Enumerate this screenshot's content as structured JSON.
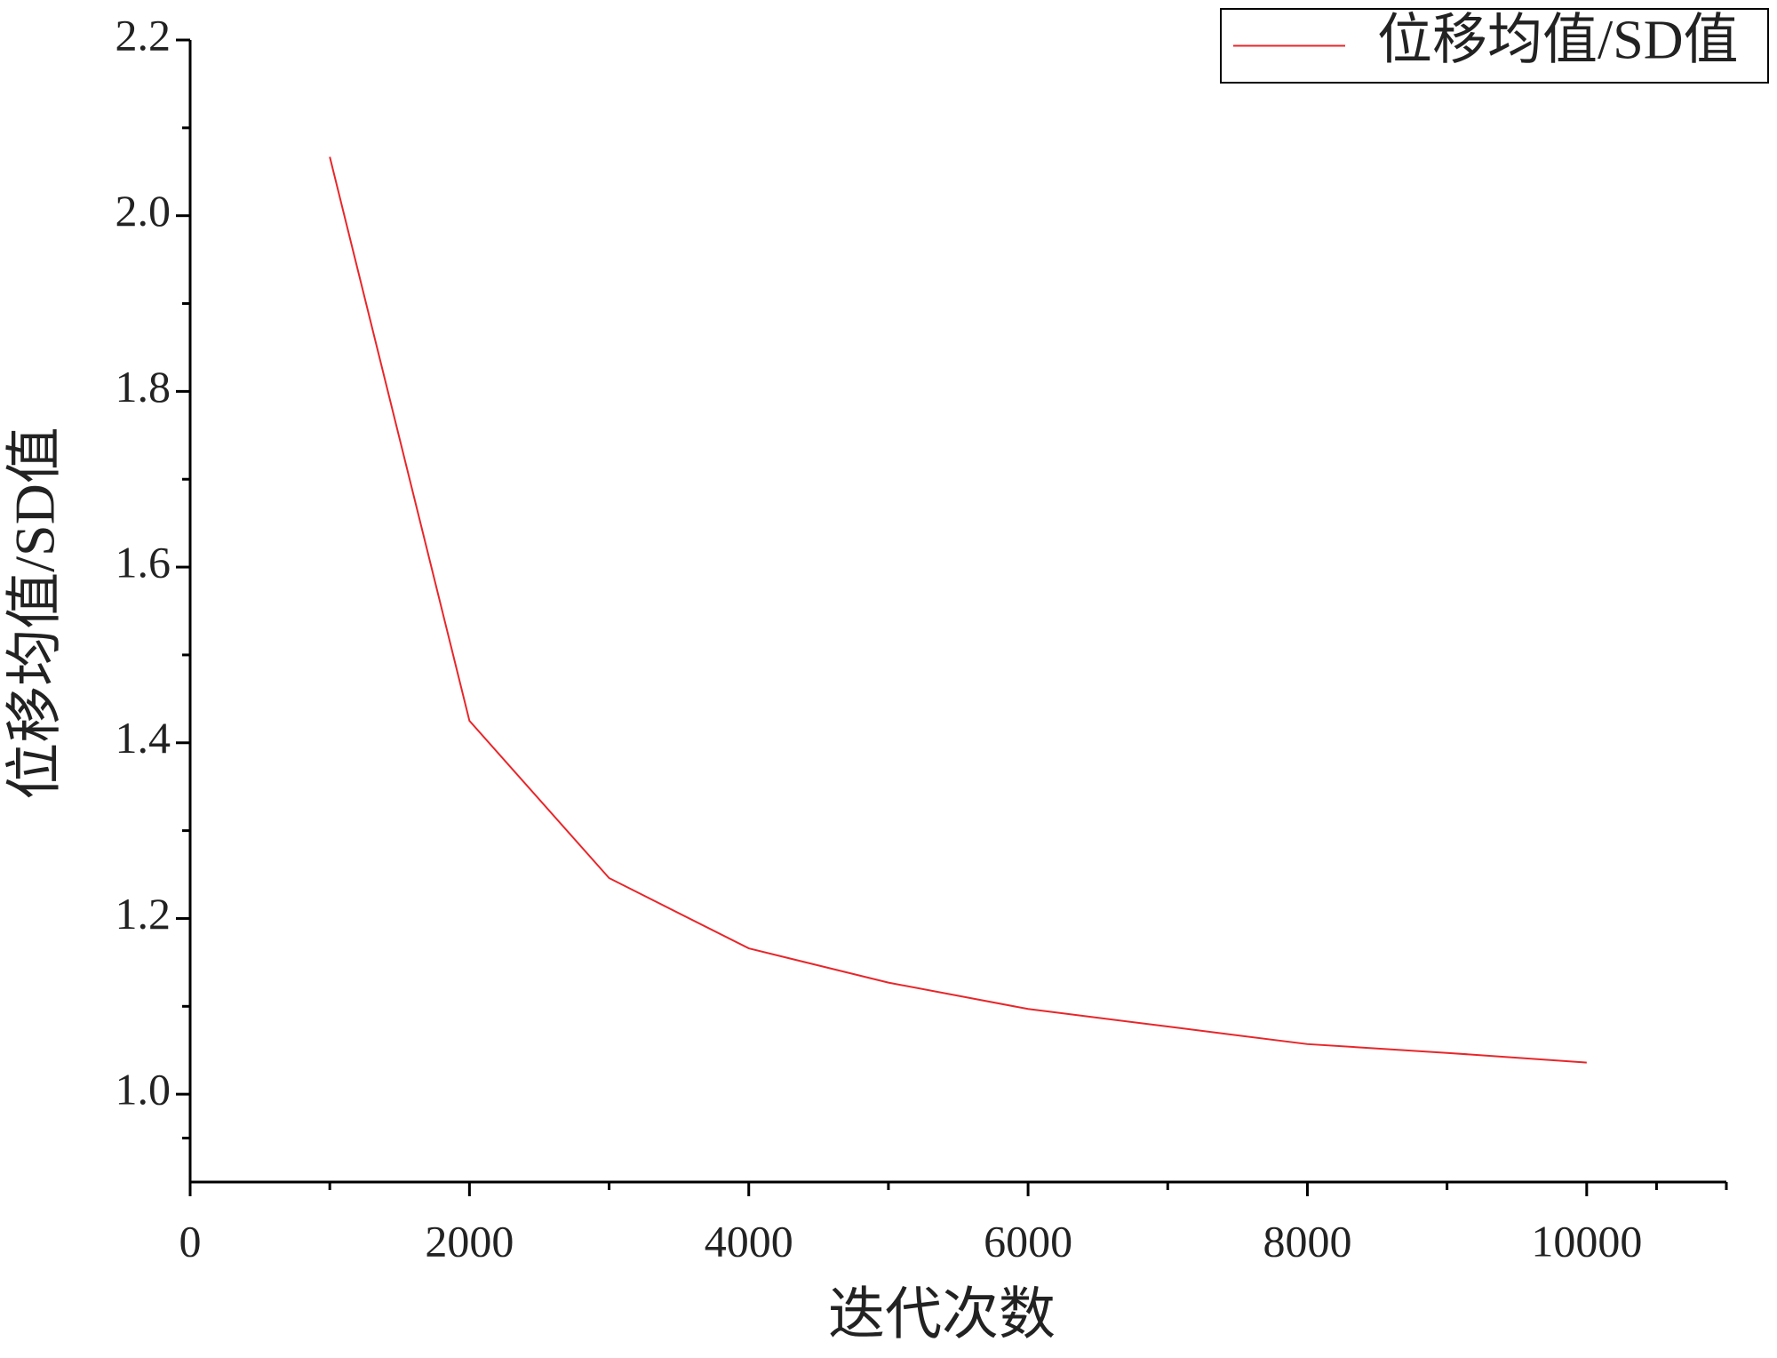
{
  "chart_data": {
    "type": "line",
    "x_label": "迭代次数",
    "y_label": "位移均值/SD值",
    "x": [
      1000,
      2000,
      3000,
      4000,
      5000,
      6000,
      7000,
      8000,
      9000,
      10000
    ],
    "series": [
      {
        "name": "位移均值/SD值",
        "color": "#e8262a",
        "values": [
          2.067,
          1.425,
          1.246,
          1.166,
          1.127,
          1.097,
          1.077,
          1.057,
          1.047,
          1.036
        ]
      }
    ],
    "xlim": [
      0,
      11000
    ],
    "xticks": [
      0,
      2000,
      4000,
      6000,
      8000,
      10000
    ],
    "ylim": [
      0.9,
      2.2
    ],
    "yticks": [
      {
        "value": 1.0,
        "label": "1.0"
      },
      1.2,
      1.4,
      1.6,
      1.8,
      {
        "value": 2.0,
        "label": "2.0"
      },
      2.2
    ],
    "legend": "top-right"
  }
}
